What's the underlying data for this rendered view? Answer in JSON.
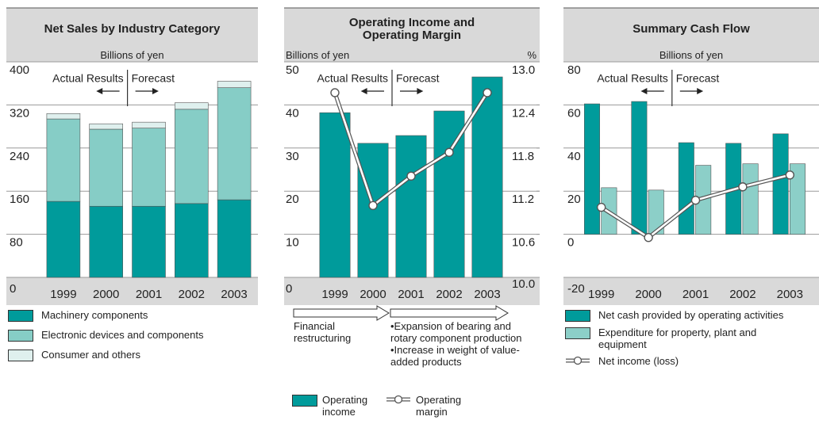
{
  "chart_data": [
    {
      "type": "stacked_bar",
      "title": "Net Sales by Industry Category",
      "subtitle": "Billions of yen",
      "annotations": [
        "Actual Results",
        "Forecast"
      ],
      "categories": [
        "1999",
        "2000",
        "2001",
        "2002",
        "2003"
      ],
      "series": [
        {
          "name": "Machinery components",
          "color": "#009b9b",
          "values": [
            141,
            132,
            132,
            137,
            144
          ]
        },
        {
          "name": "Electronic devices and components",
          "color": "#86cdc6",
          "values": [
            153,
            143,
            145,
            175,
            208
          ]
        },
        {
          "name": "Consumer and others",
          "color": "#dff0ee",
          "values": [
            10,
            10,
            11,
            12,
            12
          ]
        }
      ],
      "ylim": [
        0,
        400
      ],
      "yticks": [
        0,
        80,
        160,
        240,
        320,
        400
      ],
      "grid": true
    },
    {
      "type": "bar_line",
      "title": "Operating Income and Operating Margin",
      "y_label": "Billions of yen",
      "y2_label": "%",
      "annotations": [
        "Actual Results",
        "Forecast"
      ],
      "notes": [
        "Financial restructuring",
        "•Expansion of bearing and rotary component production",
        "•Increase in weight of value-added products"
      ],
      "categories": [
        "1999",
        "2000",
        "2001",
        "2002",
        "2003"
      ],
      "series": [
        {
          "name": "Operating income",
          "type": "bar",
          "color": "#009b9b",
          "values": [
            38.2,
            31.1,
            32.9,
            38.6,
            46.5
          ]
        },
        {
          "name": "Operating margin",
          "type": "line",
          "axis": "y2",
          "color": "#ffffff",
          "values": [
            12.57,
            11.0,
            11.41,
            11.74,
            12.57
          ]
        }
      ],
      "ylim": [
        0,
        50
      ],
      "yticks": [
        0,
        10,
        20,
        30,
        40,
        50
      ],
      "y2lim": [
        10,
        13
      ],
      "y2ticks": [
        {
          "value": 10,
          "label": "10.0"
        },
        10.6,
        11.2,
        11.8,
        12.4,
        {
          "value": 13,
          "label": "13.0"
        }
      ],
      "grid": true
    },
    {
      "type": "bar_line",
      "title": "Summary Cash Flow",
      "subtitle": "Billions of yen",
      "annotations": [
        "Actual Results",
        "Forecast"
      ],
      "categories": [
        "1999",
        "2000",
        "2001",
        "2002",
        "2003"
      ],
      "series": [
        {
          "name": "Net cash provided by operating activities",
          "type": "bar",
          "color": "#009b9b",
          "values": [
            60.5,
            61.6,
            42.5,
            42.2,
            46.6
          ]
        },
        {
          "name": "Expenditure for property, plant and equipment",
          "type": "bar",
          "color": "#8ccfc8",
          "values": [
            21.6,
            20.5,
            32,
            32.7,
            32.7
          ]
        },
        {
          "name": "Net income (loss)",
          "type": "line",
          "color": "#ffffff",
          "values": [
            12.5,
            -1.5,
            15.8,
            22,
            27.5
          ]
        }
      ],
      "ylim": [
        -20,
        80
      ],
      "yticks": [
        -20,
        0,
        20,
        40,
        60,
        80
      ],
      "grid": true
    }
  ]
}
